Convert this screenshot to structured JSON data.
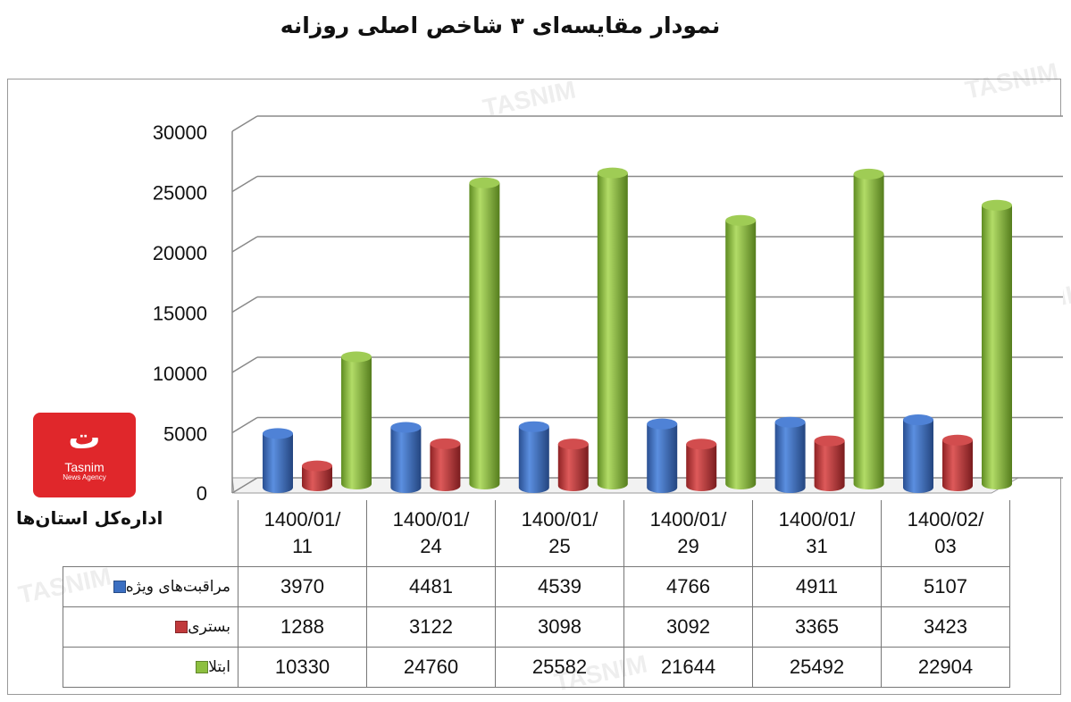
{
  "watermark_text": "TASNIM",
  "logo": {
    "brand": "Tasnim",
    "sub": "News Agency"
  },
  "colors": {
    "blue": "#3b6fc2",
    "red": "#c0393b",
    "green": "#8cbf3f"
  },
  "chart_data": {
    "type": "bar",
    "title": "نمودار مقایسه‌ای ۳ شاخص اصلی روزانه",
    "row_header": "اداره‌کل استان‌ها",
    "categories": [
      [
        "1400/01/",
        "11"
      ],
      [
        "1400/01/",
        "24"
      ],
      [
        "1400/01/",
        "25"
      ],
      [
        "1400/01/",
        "29"
      ],
      [
        "1400/01/",
        "31"
      ],
      [
        "1400/02/",
        "03"
      ]
    ],
    "series": [
      {
        "name": "مراقبت‌های ویژه",
        "color": "#3b6fc2",
        "values": [
          3970,
          4481,
          4539,
          4766,
          4911,
          5107
        ]
      },
      {
        "name": "بستری",
        "color": "#c0393b",
        "values": [
          1288,
          3122,
          3098,
          3092,
          3365,
          3423
        ]
      },
      {
        "name": "ابتلا",
        "color": "#8cbf3f",
        "values": [
          10330,
          24760,
          25582,
          21644,
          25492,
          22904
        ]
      }
    ],
    "ylim": [
      0,
      30000
    ],
    "yticks": [
      "0",
      "5000",
      "10000",
      "15000",
      "20000",
      "25000",
      "30000"
    ],
    "grid": true,
    "legend": "table"
  }
}
